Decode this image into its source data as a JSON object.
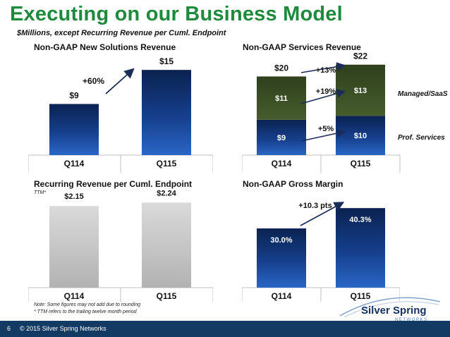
{
  "page": {
    "title": "Executing on our Business Model",
    "subtitle": "$Millions, except Recurring Revenue per Cuml. Endpoint",
    "notes": [
      "Note:  Some figures may not add due to rounding",
      "* TTM refers to the trailing twelve month period"
    ],
    "page_number": "6",
    "copyright": "© 2015 Silver Spring Networks",
    "logo": {
      "line1": "Silver Spring",
      "line2": "NETWORKS"
    },
    "colors": {
      "title_green": "#1e8a3c",
      "bar_blue": "#123f88",
      "bar_dark_olive": "#3b4e25",
      "bar_gray": "#c6c6c6",
      "footer_navy": "#123a63"
    }
  },
  "chart_data": [
    {
      "type": "bar",
      "title": "Non-GAAP New Solutions Revenue",
      "categories": [
        "Q114",
        "Q115"
      ],
      "values": [
        9,
        15
      ],
      "value_labels": [
        "$9",
        "$15"
      ],
      "ylim": [
        0,
        18
      ],
      "annotation": "+60%"
    },
    {
      "type": "bar",
      "title": "Non-GAAP Services Revenue",
      "categories": [
        "Q114",
        "Q115"
      ],
      "stacked": true,
      "series": [
        {
          "name": "Prof. Services",
          "values": [
            9,
            10
          ],
          "value_labels": [
            "$9",
            "$10"
          ]
        },
        {
          "name": "Managed/SaaS",
          "values": [
            11,
            13
          ],
          "value_labels": [
            "$11",
            "$13"
          ]
        }
      ],
      "totals": [
        20,
        22
      ],
      "total_labels": [
        "$20",
        "$22"
      ],
      "ylim": [
        0,
        26
      ],
      "annotations": [
        "+13%",
        "+19%",
        "+5%"
      ]
    },
    {
      "type": "bar",
      "title": "Recurring Revenue per Cuml. Endpoint",
      "note": "TTM*",
      "categories": [
        "Q114",
        "Q115"
      ],
      "values": [
        2.15,
        2.24
      ],
      "value_labels": [
        "$2.15",
        "$2.24"
      ],
      "ylim": [
        0,
        2.6
      ]
    },
    {
      "type": "bar",
      "title": "Non-GAAP Gross Margin",
      "categories": [
        "Q114",
        "Q115"
      ],
      "values": [
        30.0,
        40.3
      ],
      "value_labels": [
        "30.0%",
        "40.3%"
      ],
      "ylim": [
        0,
        50
      ],
      "annotation": "+10.3 pts"
    }
  ]
}
